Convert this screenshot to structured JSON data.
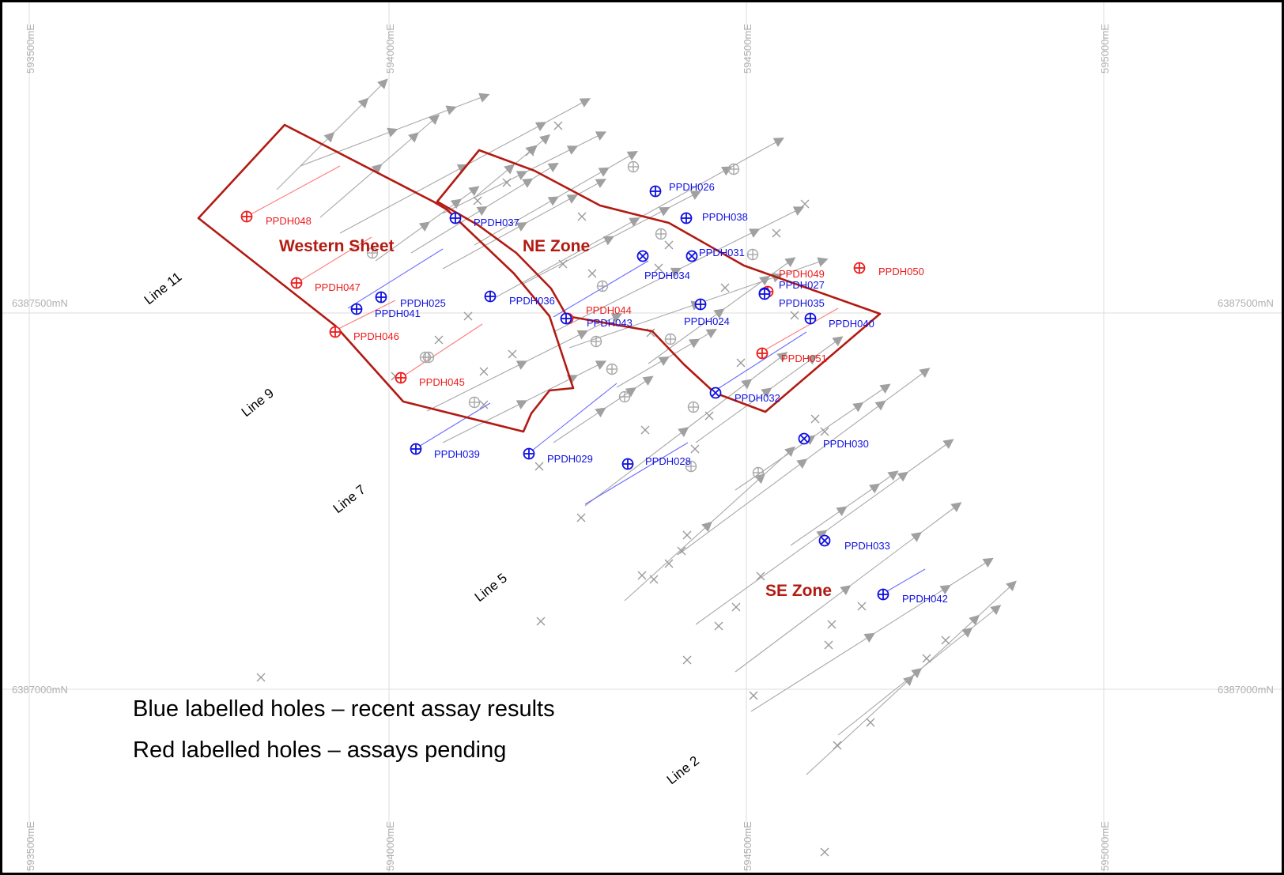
{
  "grid": {
    "easting_labels": [
      "593500mE",
      "594000mE",
      "594500mE",
      "595000mE"
    ],
    "northing_labels": [
      "6387500mN",
      "6387000mN"
    ]
  },
  "zones": [
    {
      "name": "Western Sheet"
    },
    {
      "name": "NE Zone"
    },
    {
      "name": "SE Zone"
    }
  ],
  "survey_lines": [
    "Line 11",
    "Line 9",
    "Line 7",
    "Line 5",
    "Line 2"
  ],
  "holes": [
    {
      "id": "PPDH048",
      "status": "pending",
      "symbol": "plus"
    },
    {
      "id": "PPDH047",
      "status": "pending",
      "symbol": "plus"
    },
    {
      "id": "PPDH046",
      "status": "pending",
      "symbol": "plus"
    },
    {
      "id": "PPDH045",
      "status": "pending",
      "symbol": "plus"
    },
    {
      "id": "PPDH044",
      "status": "pending",
      "symbol": "plus"
    },
    {
      "id": "PPDH049",
      "status": "pending",
      "symbol": "plus"
    },
    {
      "id": "PPDH050",
      "status": "pending",
      "symbol": "plus"
    },
    {
      "id": "PPDH051",
      "status": "pending",
      "symbol": "plus"
    },
    {
      "id": "PPDH037",
      "status": "recent",
      "symbol": "plus"
    },
    {
      "id": "PPDH026",
      "status": "recent",
      "symbol": "plus"
    },
    {
      "id": "PPDH038",
      "status": "recent",
      "symbol": "plus"
    },
    {
      "id": "PPDH031",
      "status": "recent",
      "symbol": "cross"
    },
    {
      "id": "PPDH034",
      "status": "recent",
      "symbol": "cross"
    },
    {
      "id": "PPDH025",
      "status": "recent",
      "symbol": "plus"
    },
    {
      "id": "PPDH041",
      "status": "recent",
      "symbol": "plus"
    },
    {
      "id": "PPDH036",
      "status": "recent",
      "symbol": "plus"
    },
    {
      "id": "PPDH043",
      "status": "recent",
      "symbol": "plus"
    },
    {
      "id": "PPDH024",
      "status": "recent",
      "symbol": "plus"
    },
    {
      "id": "PPDH027",
      "status": "recent",
      "symbol": "plus"
    },
    {
      "id": "PPDH035",
      "status": "recent",
      "symbol": "plus"
    },
    {
      "id": "PPDH040",
      "status": "recent",
      "symbol": "plus"
    },
    {
      "id": "PPDH032",
      "status": "recent",
      "symbol": "cross"
    },
    {
      "id": "PPDH030",
      "status": "recent",
      "symbol": "cross"
    },
    {
      "id": "PPDH039",
      "status": "recent",
      "symbol": "plus"
    },
    {
      "id": "PPDH029",
      "status": "recent",
      "symbol": "plus"
    },
    {
      "id": "PPDH028",
      "status": "recent",
      "symbol": "plus"
    },
    {
      "id": "PPDH033",
      "status": "recent",
      "symbol": "cross"
    },
    {
      "id": "PPDH042",
      "status": "recent",
      "symbol": "plus"
    }
  ],
  "legend": {
    "blue": "Blue labelled holes – recent assay results",
    "red": "Red labelled holes – assays pending"
  },
  "colors": {
    "recent": "#1010e0",
    "pending": "#ee1c1c",
    "zone_outline": "#b21a12",
    "traces": "#a8a8a8"
  }
}
